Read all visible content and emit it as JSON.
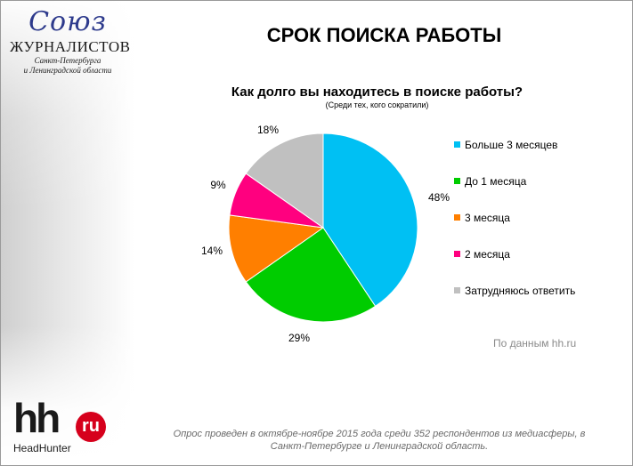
{
  "logo": {
    "script_text": "Союз",
    "main_text": "ЖУРНАЛИСТОВ",
    "sub_line1": "Санкт-Петербурга",
    "sub_line2": "и Ленинградской области"
  },
  "page_title": "СРОК ПОИСКА РАБОТЫ",
  "chart_data": {
    "type": "pie",
    "title": "Как долго вы находитесь в поиске работы?",
    "subtitle": "(Среди тех, кого сократили)",
    "series": [
      {
        "name": "Больше 3 месяцев",
        "value": 48,
        "label": "48%",
        "color": "#00c0f3"
      },
      {
        "name": "До 1 месяца",
        "value": 29,
        "label": "29%",
        "color": "#00cc00"
      },
      {
        "name": "3 месяца",
        "value": 14,
        "label": "14%",
        "color": "#ff7f00"
      },
      {
        "name": "2 месяца",
        "value": 9,
        "label": "9%",
        "color": "#ff007f"
      },
      {
        "name": "Затрудняюсь ответить",
        "value": 18,
        "label": "18%",
        "color": "#c0c0c0"
      }
    ],
    "legend_position": "right"
  },
  "source": "По данным hh.ru",
  "hh_logo": {
    "hh": "hh",
    "ru": "ru",
    "brand": "HeadHunter",
    "accent_color": "#d6001c"
  },
  "footnote": {
    "line1": "Опрос проведен  в октябре-ноябре 2015 года среди 352 респондентов из медиасферы, в",
    "line2": "Санкт-Петербурге и Ленинградской область."
  }
}
